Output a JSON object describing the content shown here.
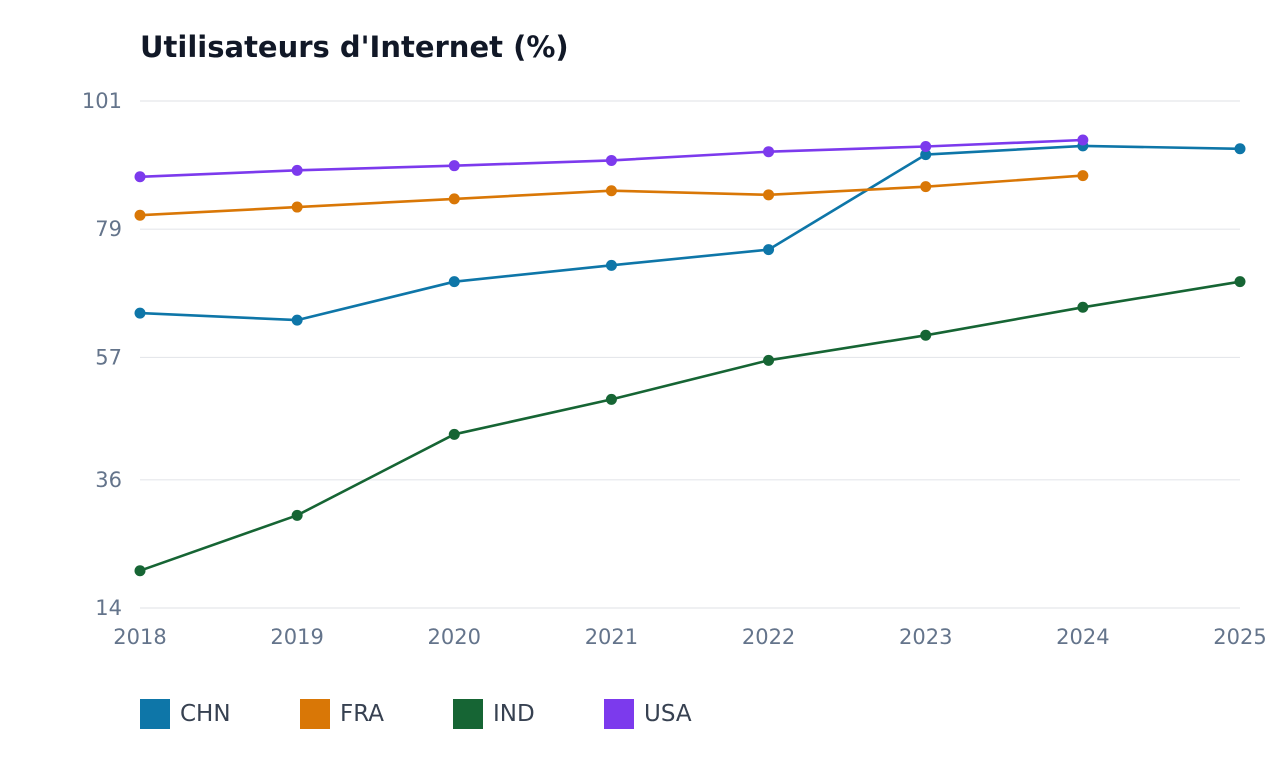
{
  "chart_data": {
    "type": "line",
    "title": "Utilisateurs d'Internet (%)",
    "xlabel": "",
    "ylabel": "",
    "x": [
      "2018",
      "2019",
      "2020",
      "2021",
      "2022",
      "2023",
      "2024",
      "2025"
    ],
    "ylim": [
      14,
      101
    ],
    "yticks": [
      "14",
      "36",
      "57",
      "79",
      "101"
    ],
    "grid": true,
    "legend_position": "bottom-left",
    "series": [
      {
        "name": "CHN",
        "color": "#0e76a8",
        "values": [
          64.6,
          63.4,
          70.0,
          72.8,
          75.5,
          91.8,
          93.3,
          92.8
        ]
      },
      {
        "name": "FRA",
        "color": "#d97706",
        "values": [
          81.4,
          82.8,
          84.2,
          85.6,
          84.9,
          86.3,
          88.2,
          null
        ]
      },
      {
        "name": "IND",
        "color": "#166534",
        "values": [
          20.4,
          29.9,
          43.8,
          49.8,
          56.5,
          60.8,
          65.6,
          70.0
        ]
      },
      {
        "name": "USA",
        "color": "#7c3aed",
        "values": [
          88.0,
          89.1,
          89.9,
          90.8,
          92.3,
          93.2,
          94.3,
          null
        ]
      }
    ]
  }
}
